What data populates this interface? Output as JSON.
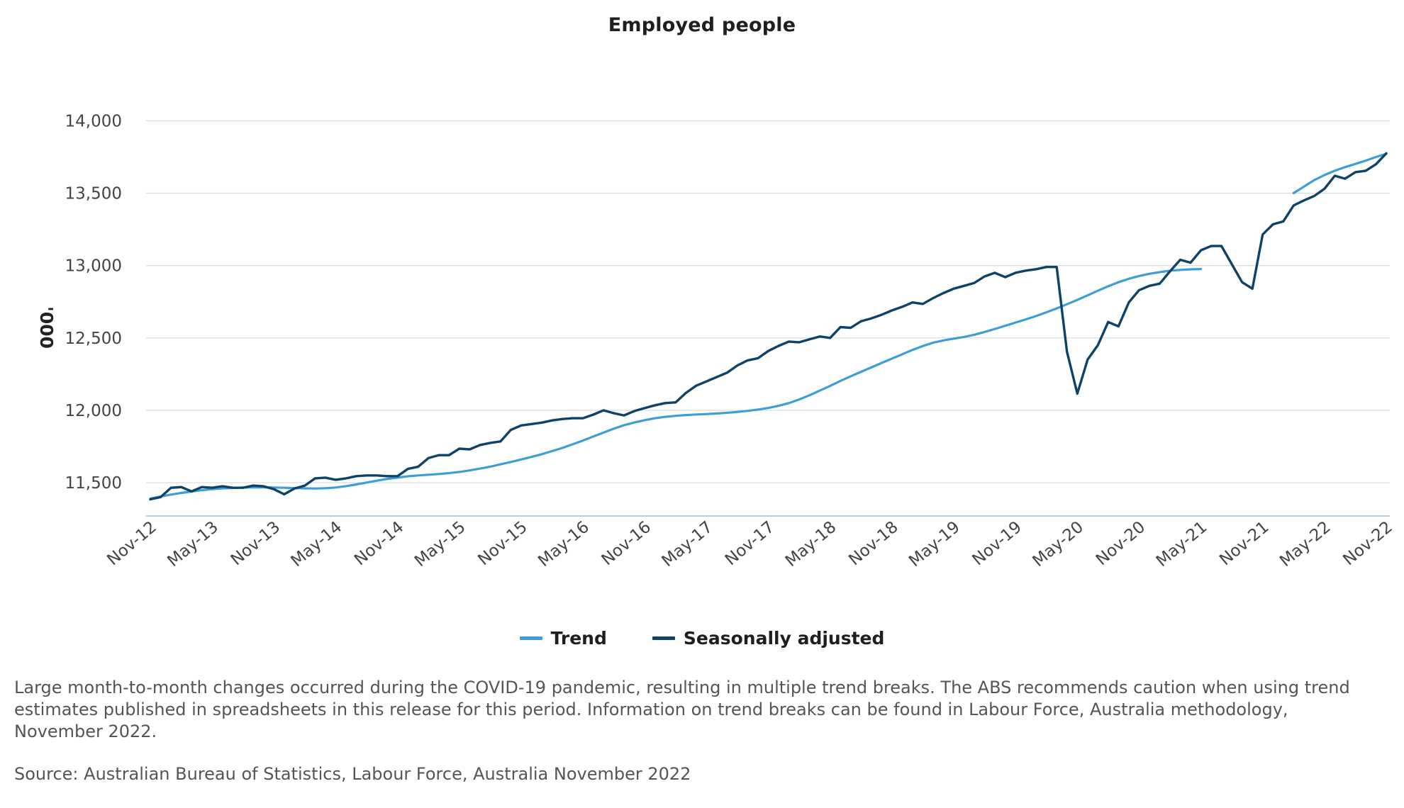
{
  "chart_data": {
    "type": "line",
    "title": "Employed people",
    "ylabel": "'000",
    "xlabel": "",
    "ylim": [
      11270,
      14100
    ],
    "yticks": [
      11500,
      12000,
      12500,
      13000,
      13500,
      14000
    ],
    "ytick_labels": [
      "11,500",
      "12,000",
      "12,500",
      "13,000",
      "13,500",
      "14,000"
    ],
    "x_start": "Nov-12",
    "x_end": "Nov-22",
    "n_months": 121,
    "xtick_labels": [
      "Nov-12",
      "May-13",
      "Nov-13",
      "May-14",
      "Nov-14",
      "May-15",
      "Nov-15",
      "May-16",
      "Nov-16",
      "May-17",
      "Nov-17",
      "May-18",
      "Nov-18",
      "May-19",
      "Nov-19",
      "May-20",
      "Nov-20",
      "May-21",
      "Nov-21",
      "May-22",
      "Nov-22"
    ],
    "legend": {
      "position": "bottom-center",
      "entries": [
        "Trend",
        "Seasonally adjusted"
      ]
    },
    "grid": true,
    "series": [
      {
        "name": "Trend",
        "color": "#3d9fd6",
        "segments": [
          {
            "start_index": 0,
            "values": [
              11390,
              11405,
              11418,
              11429,
              11439,
              11448,
              11455,
              11460,
              11464,
              11467,
              11468,
              11468,
              11467,
              11465,
              11463,
              11461,
              11460,
              11462,
              11467,
              11476,
              11488,
              11501,
              11514,
              11526,
              11535,
              11544,
              11550,
              11555,
              11560,
              11566,
              11574,
              11585,
              11597,
              11611,
              11627,
              11643,
              11660,
              11678,
              11697,
              11718,
              11740,
              11765,
              11791,
              11819,
              11846,
              11873,
              11897,
              11916,
              11932,
              11945,
              11955,
              11962,
              11967,
              11971,
              11974,
              11978,
              11983,
              11989,
              11996,
              12005,
              12016,
              12031,
              12050,
              12075,
              12104,
              12136,
              12169,
              12203,
              12235,
              12266,
              12296,
              12327,
              12357,
              12387,
              12417,
              12444,
              12467,
              12483,
              12495,
              12507,
              12522,
              12541,
              12562,
              12584,
              12606,
              12628,
              12651,
              12677,
              12704,
              12733,
              12763,
              12794,
              12826,
              12857,
              12885,
              12909,
              12928,
              12943,
              12955,
              12964,
              12970,
              12974,
              12976
            ]
          },
          {
            "start_index": 111,
            "values": [
              13500,
              13545,
              13590,
              13625,
              13655,
              13680,
              13702,
              13725,
              13750,
              13772
            ]
          }
        ]
      },
      {
        "name": "Seasonally adjusted",
        "color": "#0d4369",
        "start_index": 0,
        "values": [
          11385,
          11400,
          11465,
          11470,
          11440,
          11470,
          11465,
          11475,
          11465,
          11465,
          11480,
          11475,
          11455,
          11420,
          11460,
          11480,
          11530,
          11535,
          11520,
          11530,
          11545,
          11550,
          11550,
          11545,
          11545,
          11595,
          11610,
          11670,
          11690,
          11690,
          11735,
          11730,
          11760,
          11775,
          11785,
          11865,
          11895,
          11905,
          11915,
          11930,
          11940,
          11945,
          11945,
          11970,
          12000,
          11980,
          11965,
          11995,
          12015,
          12035,
          12050,
          12055,
          12120,
          12170,
          12200,
          12230,
          12260,
          12310,
          12345,
          12360,
          12410,
          12445,
          12475,
          12470,
          12490,
          12510,
          12500,
          12575,
          12570,
          12615,
          12635,
          12660,
          12690,
          12715,
          12745,
          12735,
          12775,
          12810,
          12840,
          12860,
          12880,
          12925,
          12950,
          12920,
          12950,
          12965,
          12975,
          12990,
          12990,
          12405,
          12115,
          12350,
          12450,
          12610,
          12580,
          12745,
          12830,
          12860,
          12875,
          12960,
          13040,
          13020,
          13105,
          13135,
          13135,
          13010,
          12885,
          12840,
          13215,
          13285,
          13305,
          13415,
          13450,
          13480,
          13530,
          13620,
          13600,
          13645,
          13655,
          13700,
          13775
        ]
      }
    ]
  },
  "legend": {
    "trend_label": "Trend",
    "sa_label": "Seasonally adjusted"
  },
  "note": "Large month-to-month changes occurred during the COVID-19 pandemic, resulting in multiple trend breaks. The ABS recommends caution when using trend estimates published in spreadsheets in this release for this period. Information on trend breaks can be found in Labour Force, Australia methodology, November 2022.",
  "source": "Source: Australian Bureau of Statistics, Labour Force, Australia November 2022"
}
